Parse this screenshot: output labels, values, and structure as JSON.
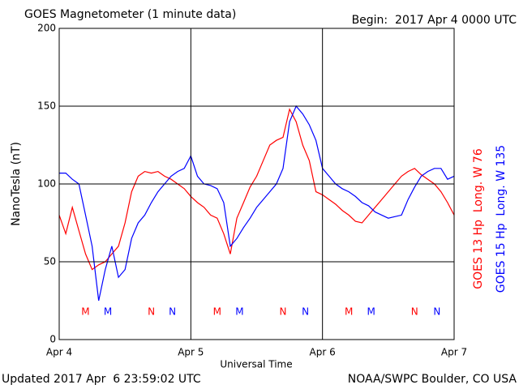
{
  "chart_data": {
    "type": "line",
    "title": "GOES Magnetometer (1 minute data)",
    "subtitle": "Begin:  2017 Apr 4 0000 UTC",
    "ylabel": "NanoTesla (nT)",
    "xlabel": "Universal Time",
    "footer_left": "Updated 2017 Apr  6 23:59:02 UTC",
    "footer_right": "NOAA/SWPC Boulder, CO USA",
    "xlim": [
      0,
      3
    ],
    "xticks": [
      {
        "value": 0,
        "label": "Apr 4"
      },
      {
        "value": 1,
        "label": "Apr 5"
      },
      {
        "value": 2,
        "label": "Apr 6"
      },
      {
        "value": 3,
        "label": "Apr 7"
      }
    ],
    "ylim": [
      0,
      200
    ],
    "yticks": [
      0,
      50,
      100,
      150,
      200
    ],
    "grid": true,
    "x": [
      0,
      0.05,
      0.1,
      0.15,
      0.2,
      0.25,
      0.3,
      0.35,
      0.4,
      0.45,
      0.5,
      0.55,
      0.6,
      0.65,
      0.7,
      0.75,
      0.8,
      0.85,
      0.9,
      0.95,
      1,
      1.05,
      1.1,
      1.15,
      1.2,
      1.25,
      1.3,
      1.35,
      1.4,
      1.45,
      1.5,
      1.55,
      1.6,
      1.65,
      1.7,
      1.75,
      1.8,
      1.85,
      1.9,
      1.95,
      2,
      2.05,
      2.1,
      2.15,
      2.2,
      2.25,
      2.3,
      2.35,
      2.4,
      2.45,
      2.5,
      2.55,
      2.6,
      2.65,
      2.7,
      2.75,
      2.8,
      2.85,
      2.9,
      2.95,
      3
    ],
    "series": [
      {
        "name": "GOES 13 Hp  Long. W 76",
        "color": "#ff0000",
        "values": [
          80,
          68,
          85,
          70,
          55,
          45,
          48,
          50,
          55,
          60,
          75,
          95,
          105,
          108,
          107,
          108,
          105,
          103,
          100,
          97,
          92,
          88,
          85,
          80,
          78,
          68,
          55,
          78,
          88,
          98,
          105,
          115,
          125,
          128,
          130,
          148,
          140,
          125,
          115,
          95,
          93,
          90,
          87,
          83,
          80,
          76,
          75,
          80,
          85,
          90,
          95,
          100,
          105,
          108,
          110,
          106,
          103,
          100,
          95,
          88,
          80
        ]
      },
      {
        "name": "GOES 15 Hp  Long. W 135",
        "color": "#0000ff",
        "values": [
          107,
          107,
          103,
          100,
          80,
          60,
          25,
          45,
          60,
          40,
          45,
          65,
          75,
          80,
          88,
          95,
          100,
          105,
          108,
          110,
          118,
          105,
          100,
          99,
          97,
          88,
          60,
          65,
          72,
          78,
          85,
          90,
          95,
          100,
          110,
          140,
          150,
          145,
          138,
          128,
          110,
          105,
          100,
          97,
          95,
          92,
          88,
          86,
          82,
          80,
          78,
          79,
          80,
          90,
          98,
          105,
          108,
          110,
          110,
          103,
          105
        ]
      }
    ],
    "markers": [
      {
        "label": "M",
        "x": 0.2,
        "series": 0
      },
      {
        "label": "M",
        "x": 0.37,
        "series": 1
      },
      {
        "label": "N",
        "x": 0.7,
        "series": 0
      },
      {
        "label": "N",
        "x": 0.86,
        "series": 1
      },
      {
        "label": "M",
        "x": 1.2,
        "series": 0
      },
      {
        "label": "M",
        "x": 1.37,
        "series": 1
      },
      {
        "label": "N",
        "x": 1.7,
        "series": 0
      },
      {
        "label": "N",
        "x": 1.87,
        "series": 1
      },
      {
        "label": "M",
        "x": 2.2,
        "series": 0
      },
      {
        "label": "M",
        "x": 2.37,
        "series": 1
      },
      {
        "label": "N",
        "x": 2.7,
        "series": 0
      },
      {
        "label": "N",
        "x": 2.87,
        "series": 1
      }
    ]
  }
}
